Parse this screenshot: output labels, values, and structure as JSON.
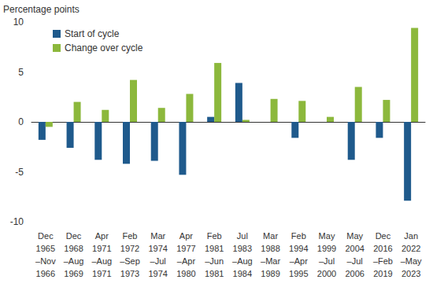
{
  "chart_data": {
    "type": "bar",
    "y_label": "Percentage points",
    "categories": [
      "Dec\n1965\n–Nov\n1966",
      "Dec\n1968\n–Aug\n1969",
      "Apr\n1971\n–Aug\n1971",
      "Feb\n1972\n–Sep\n1973",
      "Mar\n1974\n–Jul\n1974",
      "Apr\n1977\n–Apr\n1980",
      "Feb\n1981\n–Jun\n1981",
      "Jul\n1983\n–Aug\n1984",
      "Mar\n1988\n–Mar\n1989",
      "Feb\n1994\n–Apr\n1995",
      "May\n1999\n–Jul\n2000",
      "May\n2004\n–Jul\n2006",
      "Dec\n2016\n–Feb\n2019",
      "Jan\n2022\n–May\n2023"
    ],
    "series": [
      {
        "name": "Start of cycle",
        "color": "#1f5a8c",
        "values": [
          -1.8,
          -2.6,
          -3.8,
          -4.2,
          -3.9,
          -5.3,
          0.5,
          3.9,
          0.0,
          -1.6,
          0.0,
          -3.8,
          -1.6,
          -7.9
        ]
      },
      {
        "name": "Change over cycle",
        "color": "#8cb83c",
        "values": [
          -0.5,
          2.0,
          1.2,
          4.2,
          1.4,
          2.8,
          5.9,
          0.2,
          2.3,
          2.1,
          0.5,
          3.5,
          2.2,
          9.4
        ]
      }
    ],
    "ylim": [
      -10,
      10
    ],
    "yticks": [
      -10,
      -5,
      0,
      5,
      10
    ],
    "grid": false,
    "legend": "upper left"
  }
}
